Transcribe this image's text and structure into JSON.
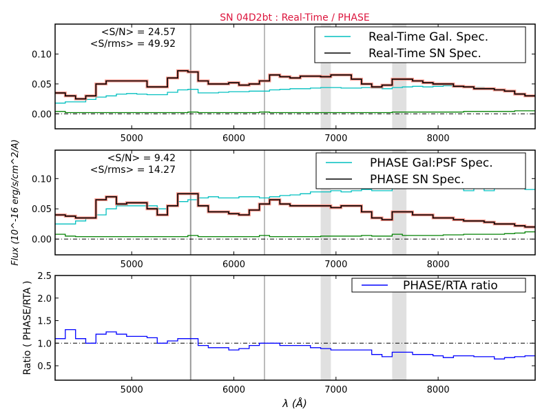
{
  "title": "SN 04D2bt : Real-Time / PHASE",
  "colors": {
    "title": "#dc143c",
    "sn": "#000000",
    "err": "#fa8072",
    "gal": "#00bfbf",
    "sky": "#008000",
    "ratio": "#0000ff",
    "band": "#e0e0e0"
  },
  "chart_data": [
    {
      "type": "line",
      "xlim": [
        4250,
        8950
      ],
      "ylim": [
        -0.025,
        0.15
      ],
      "xticks": [
        "5000",
        "6000",
        "7000",
        "8000"
      ],
      "yticks": [
        "0.00",
        "0.05",
        "0.10"
      ],
      "annotations": [
        "<S/N> = 24.57",
        "<S/rms> = 49.92"
      ],
      "legend_position": "top-right",
      "x": [
        4300,
        4400,
        4500,
        4600,
        4700,
        4800,
        4900,
        5000,
        5100,
        5200,
        5300,
        5400,
        5500,
        5600,
        5700,
        5800,
        5900,
        6000,
        6100,
        6200,
        6300,
        6400,
        6500,
        6600,
        6700,
        6800,
        6900,
        7000,
        7100,
        7200,
        7300,
        7400,
        7500,
        7600,
        7700,
        7800,
        7900,
        8000,
        8100,
        8200,
        8300,
        8400,
        8500,
        8600,
        8700,
        8800,
        8900
      ],
      "series": [
        {
          "name": "Real-Time Gal. Spec.",
          "color": "gal",
          "values": [
            0.018,
            0.02,
            0.02,
            0.024,
            0.028,
            0.03,
            0.033,
            0.034,
            0.033,
            0.032,
            0.032,
            0.036,
            0.04,
            0.041,
            0.035,
            0.035,
            0.036,
            0.037,
            0.037,
            0.038,
            0.038,
            0.04,
            0.041,
            0.042,
            0.042,
            0.043,
            0.044,
            0.044,
            0.043,
            0.043,
            0.044,
            0.043,
            0.042,
            0.044,
            0.045,
            0.046,
            0.045,
            0.046,
            0.047,
            0.045,
            0.045,
            0.044,
            0.043,
            0.04,
            0.038,
            0.034,
            0.03
          ]
        },
        {
          "name": "Real-Time SN Spec.",
          "color": "sn",
          "values": [
            0.035,
            0.03,
            0.025,
            0.03,
            0.05,
            0.055,
            0.055,
            0.055,
            0.055,
            0.045,
            0.045,
            0.06,
            0.072,
            0.07,
            0.055,
            0.05,
            0.05,
            0.052,
            0.048,
            0.05,
            0.055,
            0.065,
            0.062,
            0.06,
            0.063,
            0.063,
            0.062,
            0.065,
            0.065,
            0.058,
            0.05,
            0.045,
            0.048,
            0.058,
            0.058,
            0.055,
            0.052,
            0.05,
            0.05,
            0.046,
            0.045,
            0.042,
            0.042,
            0.04,
            0.038,
            0.033,
            0.03
          ]
        },
        {
          "color": "sky",
          "values": [
            0.004,
            0.002,
            0.002,
            0.002,
            0.002,
            0.002,
            0.002,
            0.002,
            0.002,
            0.002,
            0.002,
            0.002,
            0.002,
            0.003,
            0.002,
            0.002,
            0.002,
            0.002,
            0.002,
            0.002,
            0.003,
            0.002,
            0.002,
            0.002,
            0.002,
            0.002,
            0.002,
            0.002,
            0.002,
            0.002,
            0.002,
            0.002,
            0.002,
            0.003,
            0.003,
            0.003,
            0.003,
            0.003,
            0.003,
            0.003,
            0.004,
            0.004,
            0.004,
            0.004,
            0.004,
            0.005,
            0.005
          ]
        }
      ]
    },
    {
      "type": "line",
      "xlim": [
        4250,
        8950
      ],
      "ylim": [
        -0.026,
        0.147
      ],
      "xticks": [
        "5000",
        "6000",
        "7000",
        "8000"
      ],
      "yticks": [
        "0.00",
        "0.05",
        "0.10"
      ],
      "ylabel": "Flux (10^-16 erg/s/cm^2/A)",
      "annotations": [
        "<S/N> = 9.42",
        "<S/rms> = 14.27"
      ],
      "legend_position": "top-right",
      "x": [
        4300,
        4400,
        4500,
        4600,
        4700,
        4800,
        4900,
        5000,
        5100,
        5200,
        5300,
        5400,
        5500,
        5600,
        5700,
        5800,
        5900,
        6000,
        6100,
        6200,
        6300,
        6400,
        6500,
        6600,
        6700,
        6800,
        6900,
        7000,
        7100,
        7200,
        7300,
        7400,
        7500,
        7600,
        7700,
        7800,
        7900,
        8000,
        8100,
        8200,
        8300,
        8400,
        8500,
        8600,
        8700,
        8800,
        8900
      ],
      "series": [
        {
          "name": "PHASE Gal:PSF Spec.",
          "color": "gal",
          "values": [
            0.025,
            0.025,
            0.03,
            0.035,
            0.04,
            0.05,
            0.055,
            0.055,
            0.055,
            0.055,
            0.05,
            0.055,
            0.062,
            0.065,
            0.068,
            0.07,
            0.068,
            0.068,
            0.07,
            0.07,
            0.068,
            0.07,
            0.072,
            0.073,
            0.075,
            0.078,
            0.078,
            0.08,
            0.078,
            0.08,
            0.082,
            0.08,
            0.08,
            0.085,
            0.085,
            0.085,
            0.085,
            0.085,
            0.088,
            0.085,
            0.08,
            0.085,
            0.08,
            0.085,
            0.085,
            0.085,
            0.082
          ]
        },
        {
          "name": "PHASE SN Spec.",
          "color": "sn",
          "values": [
            0.04,
            0.038,
            0.035,
            0.035,
            0.065,
            0.07,
            0.058,
            0.06,
            0.06,
            0.05,
            0.04,
            0.055,
            0.075,
            0.075,
            0.055,
            0.045,
            0.045,
            0.042,
            0.04,
            0.048,
            0.058,
            0.065,
            0.058,
            0.055,
            0.055,
            0.055,
            0.055,
            0.052,
            0.055,
            0.055,
            0.045,
            0.035,
            0.032,
            0.045,
            0.045,
            0.04,
            0.04,
            0.035,
            0.035,
            0.032,
            0.03,
            0.03,
            0.028,
            0.025,
            0.025,
            0.022,
            0.02
          ]
        },
        {
          "color": "sky",
          "values": [
            0.008,
            0.005,
            0.004,
            0.004,
            0.004,
            0.004,
            0.004,
            0.004,
            0.004,
            0.004,
            0.004,
            0.004,
            0.004,
            0.006,
            0.004,
            0.004,
            0.004,
            0.004,
            0.004,
            0.004,
            0.006,
            0.004,
            0.004,
            0.004,
            0.004,
            0.004,
            0.005,
            0.005,
            0.005,
            0.005,
            0.006,
            0.005,
            0.005,
            0.008,
            0.006,
            0.006,
            0.006,
            0.006,
            0.007,
            0.007,
            0.008,
            0.008,
            0.008,
            0.008,
            0.009,
            0.01,
            0.012
          ]
        }
      ]
    },
    {
      "type": "line",
      "xlim": [
        4250,
        8950
      ],
      "ylim": [
        0.18,
        2.5
      ],
      "xticks": [
        "5000",
        "6000",
        "7000",
        "8000"
      ],
      "yticks": [
        "0.5",
        "1.0",
        "1.5",
        "2.0",
        "2.5"
      ],
      "xlabel": "λ (Å)",
      "ylabel": "Ratio ( PHASE/RTA )",
      "legend_position": "top-right",
      "x": [
        4300,
        4400,
        4500,
        4600,
        4700,
        4800,
        4900,
        5000,
        5100,
        5200,
        5300,
        5400,
        5500,
        5600,
        5700,
        5800,
        5900,
        6000,
        6100,
        6200,
        6300,
        6400,
        6500,
        6600,
        6700,
        6800,
        6900,
        7000,
        7100,
        7200,
        7300,
        7400,
        7500,
        7600,
        7700,
        7800,
        7900,
        8000,
        8100,
        8200,
        8300,
        8400,
        8500,
        8600,
        8700,
        8800,
        8900
      ],
      "series": [
        {
          "name": "PHASE/RTA ratio",
          "color": "ratio",
          "values": [
            1.1,
            1.3,
            1.1,
            1.0,
            1.2,
            1.25,
            1.2,
            1.15,
            1.15,
            1.12,
            1.0,
            1.05,
            1.1,
            1.1,
            0.95,
            0.9,
            0.9,
            0.85,
            0.88,
            0.95,
            1.0,
            1.0,
            0.95,
            0.95,
            0.95,
            0.9,
            0.88,
            0.85,
            0.85,
            0.85,
            0.85,
            0.75,
            0.7,
            0.8,
            0.8,
            0.75,
            0.75,
            0.72,
            0.68,
            0.72,
            0.72,
            0.7,
            0.7,
            0.65,
            0.68,
            0.7,
            0.72
          ]
        }
      ]
    }
  ],
  "sky_lines": [
    5577,
    6300
  ],
  "telluric_bands": [
    [
      6850,
      6950
    ],
    [
      7550,
      7690
    ]
  ]
}
